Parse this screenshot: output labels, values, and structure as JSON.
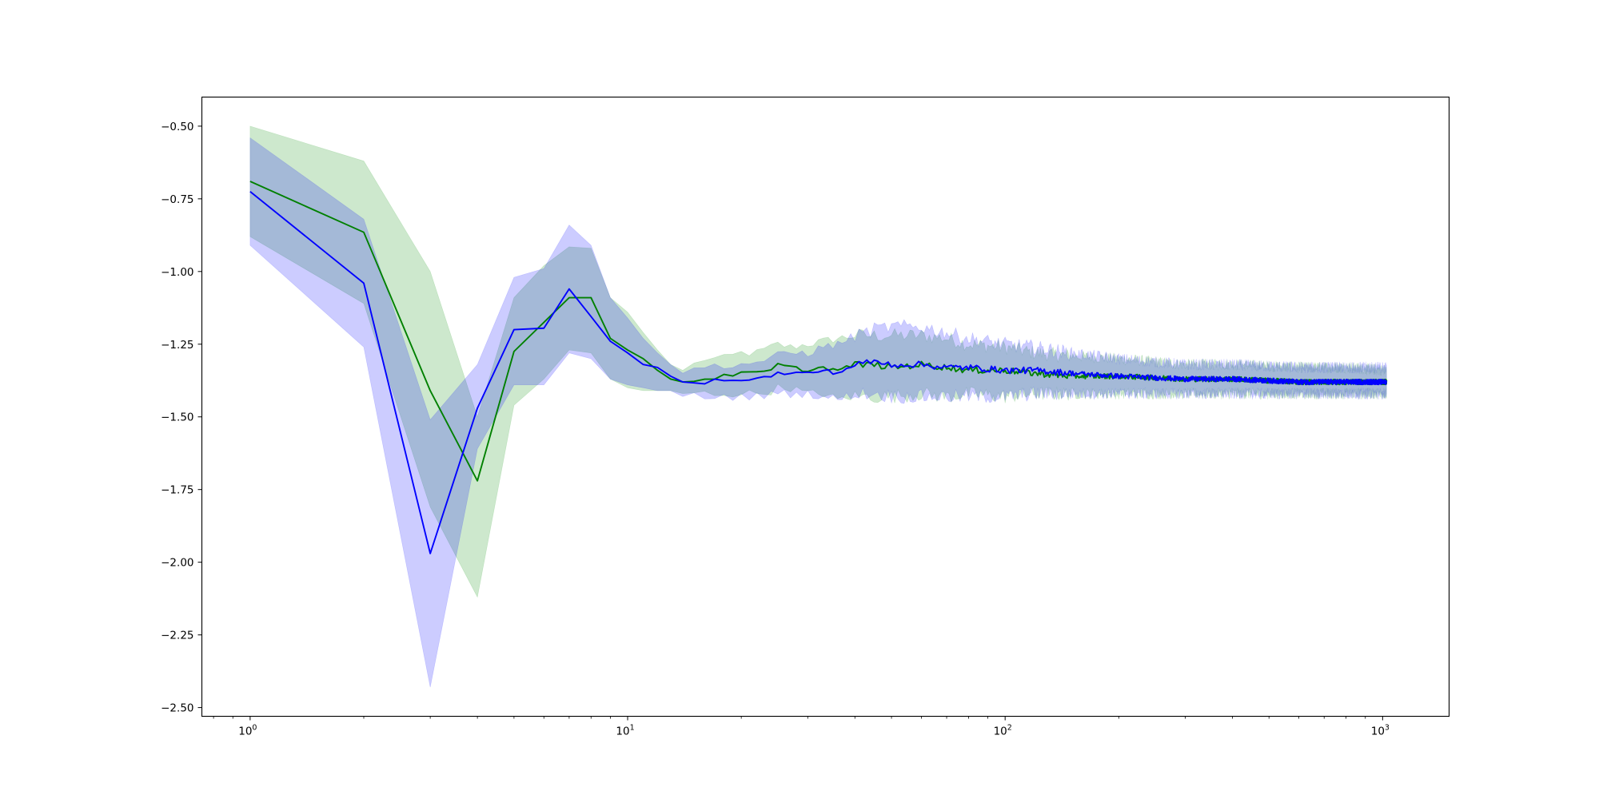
{
  "chart_data": {
    "type": "line",
    "title": "",
    "xlabel": "",
    "ylabel": "",
    "xscale": "log",
    "xlim": [
      0.745,
      1500
    ],
    "ylim": [
      -2.53,
      -0.4
    ],
    "grid": false,
    "legend": "none",
    "x_major_ticks": [
      {
        "value": 1,
        "base": "10",
        "exp": "0"
      },
      {
        "value": 10,
        "base": "10",
        "exp": "1"
      },
      {
        "value": 100,
        "base": "10",
        "exp": "2"
      },
      {
        "value": 1000,
        "base": "10",
        "exp": "3"
      }
    ],
    "y_ticks": [
      {
        "value": -0.5,
        "label": "−0.50"
      },
      {
        "value": -0.75,
        "label": "−0.75"
      },
      {
        "value": -1.0,
        "label": "−1.00"
      },
      {
        "value": -1.25,
        "label": "−1.25"
      },
      {
        "value": -1.5,
        "label": "−1.50"
      },
      {
        "value": -1.75,
        "label": "−1.75"
      },
      {
        "value": -2.0,
        "label": "−2.00"
      },
      {
        "value": -2.25,
        "label": "−2.25"
      },
      {
        "value": -2.5,
        "label": "−2.50"
      }
    ],
    "series": [
      {
        "color": "#008000",
        "band_color": "#2ca02c",
        "band_opacity": 0.24,
        "x": [
          1,
          2,
          3,
          4,
          5,
          6,
          7,
          8,
          9,
          10,
          11,
          12,
          13,
          14,
          16,
          18,
          20,
          22,
          24,
          25,
          27,
          30,
          33,
          36,
          40,
          45,
          50,
          60,
          70,
          80,
          100,
          120,
          150,
          200,
          300,
          400,
          600,
          800,
          1024
        ],
        "mean": [
          -0.69,
          -0.865,
          -1.41,
          -1.72,
          -1.275,
          -1.175,
          -1.09,
          -1.09,
          -1.23,
          -1.27,
          -1.3,
          -1.34,
          -1.37,
          -1.38,
          -1.37,
          -1.36,
          -1.35,
          -1.35,
          -1.34,
          -1.32,
          -1.33,
          -1.34,
          -1.33,
          -1.34,
          -1.32,
          -1.32,
          -1.33,
          -1.32,
          -1.33,
          -1.34,
          -1.34,
          -1.35,
          -1.36,
          -1.36,
          -1.37,
          -1.37,
          -1.38,
          -1.38,
          -1.38
        ],
        "upper": [
          -0.5,
          -0.62,
          -1.0,
          -1.5,
          -1.09,
          -0.98,
          -0.915,
          -0.92,
          -1.09,
          -1.14,
          -1.21,
          -1.27,
          -1.32,
          -1.34,
          -1.3,
          -1.3,
          -1.28,
          -1.28,
          -1.26,
          -1.25,
          -1.26,
          -1.25,
          -1.24,
          -1.23,
          -1.22,
          -1.22,
          -1.22,
          -1.22,
          -1.23,
          -1.25,
          -1.26,
          -1.28,
          -1.29,
          -1.3,
          -1.32,
          -1.32,
          -1.33,
          -1.33,
          -1.34
        ],
        "lower": [
          -0.88,
          -1.11,
          -1.81,
          -2.12,
          -1.46,
          -1.37,
          -1.27,
          -1.28,
          -1.37,
          -1.4,
          -1.41,
          -1.41,
          -1.41,
          -1.42,
          -1.42,
          -1.42,
          -1.42,
          -1.42,
          -1.41,
          -1.4,
          -1.4,
          -1.42,
          -1.42,
          -1.44,
          -1.43,
          -1.43,
          -1.43,
          -1.42,
          -1.43,
          -1.42,
          -1.43,
          -1.42,
          -1.42,
          -1.42,
          -1.42,
          -1.42,
          -1.42,
          -1.42,
          -1.42
        ]
      },
      {
        "color": "#0000ff",
        "band_color": "#0000ff",
        "band_opacity": 0.2,
        "x": [
          1,
          2,
          3,
          4,
          5,
          6,
          7,
          8,
          9,
          10,
          11,
          12,
          13,
          14,
          16,
          18,
          20,
          22,
          24,
          25,
          27,
          30,
          33,
          36,
          40,
          45,
          50,
          60,
          70,
          80,
          100,
          120,
          150,
          200,
          300,
          400,
          600,
          800,
          1024
        ],
        "mean": [
          -0.725,
          -1.04,
          -1.97,
          -1.47,
          -1.2,
          -1.195,
          -1.06,
          -1.155,
          -1.24,
          -1.28,
          -1.32,
          -1.33,
          -1.36,
          -1.38,
          -1.38,
          -1.37,
          -1.37,
          -1.37,
          -1.36,
          -1.35,
          -1.35,
          -1.35,
          -1.34,
          -1.35,
          -1.32,
          -1.31,
          -1.32,
          -1.32,
          -1.33,
          -1.33,
          -1.34,
          -1.34,
          -1.35,
          -1.36,
          -1.37,
          -1.37,
          -1.38,
          -1.38,
          -1.38
        ],
        "upper": [
          -0.54,
          -0.82,
          -1.51,
          -1.32,
          -1.02,
          -0.99,
          -0.84,
          -0.91,
          -1.09,
          -1.16,
          -1.23,
          -1.28,
          -1.32,
          -1.35,
          -1.33,
          -1.32,
          -1.32,
          -1.31,
          -1.3,
          -1.29,
          -1.28,
          -1.28,
          -1.26,
          -1.25,
          -1.22,
          -1.2,
          -1.19,
          -1.19,
          -1.21,
          -1.23,
          -1.25,
          -1.26,
          -1.28,
          -1.3,
          -1.32,
          -1.32,
          -1.33,
          -1.33,
          -1.33
        ],
        "lower": [
          -0.91,
          -1.26,
          -2.43,
          -1.61,
          -1.39,
          -1.39,
          -1.28,
          -1.3,
          -1.37,
          -1.39,
          -1.4,
          -1.41,
          -1.41,
          -1.43,
          -1.43,
          -1.43,
          -1.43,
          -1.43,
          -1.42,
          -1.42,
          -1.42,
          -1.42,
          -1.43,
          -1.44,
          -1.42,
          -1.42,
          -1.43,
          -1.43,
          -1.43,
          -1.43,
          -1.43,
          -1.42,
          -1.42,
          -1.42,
          -1.42,
          -1.42,
          -1.42,
          -1.42,
          -1.42
        ]
      }
    ]
  }
}
